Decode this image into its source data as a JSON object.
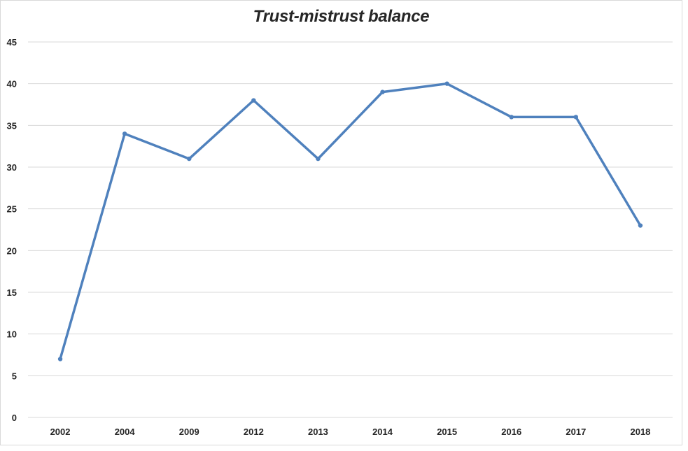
{
  "chart_data": {
    "type": "line",
    "title": "Trust-mistrust balance",
    "xlabel": "",
    "ylabel": "",
    "categories": [
      "2002",
      "2004",
      "2009",
      "2012",
      "2013",
      "2014",
      "2015",
      "2016",
      "2017",
      "2018"
    ],
    "series": [
      {
        "values": [
          7,
          34,
          31,
          38,
          31,
          39,
          40,
          36,
          36,
          23
        ]
      }
    ],
    "ylim": [
      0,
      45
    ],
    "yticks": [
      0,
      5,
      10,
      15,
      20,
      25,
      30,
      35,
      40,
      45
    ],
    "grid": "horizontal",
    "legend": "none",
    "colors": {
      "line": "#4f81bd",
      "grid": "#d9d9d9",
      "text": "#262626"
    }
  }
}
